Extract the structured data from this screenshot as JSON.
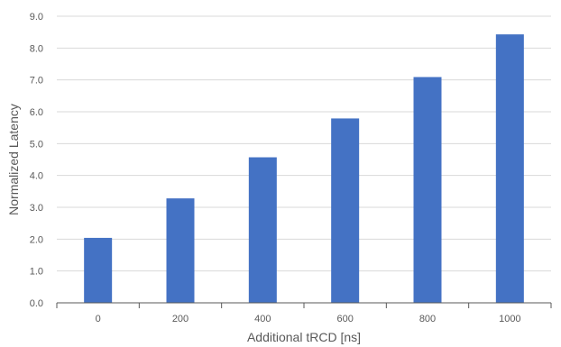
{
  "chart_data": {
    "type": "bar",
    "categories": [
      "0",
      "200",
      "400",
      "600",
      "800",
      "1000"
    ],
    "values": [
      2.04,
      3.28,
      4.57,
      5.79,
      7.09,
      8.43
    ],
    "xlabel": "Additional tRCD [ns]",
    "ylabel": "Normalized Latency",
    "ylim": [
      0,
      9
    ],
    "yticks": [
      "0.0",
      "1.0",
      "2.0",
      "3.0",
      "4.0",
      "5.0",
      "6.0",
      "7.0",
      "8.0",
      "9.0"
    ],
    "grid": true,
    "legend": "none",
    "bar_color": "#4472c4"
  }
}
